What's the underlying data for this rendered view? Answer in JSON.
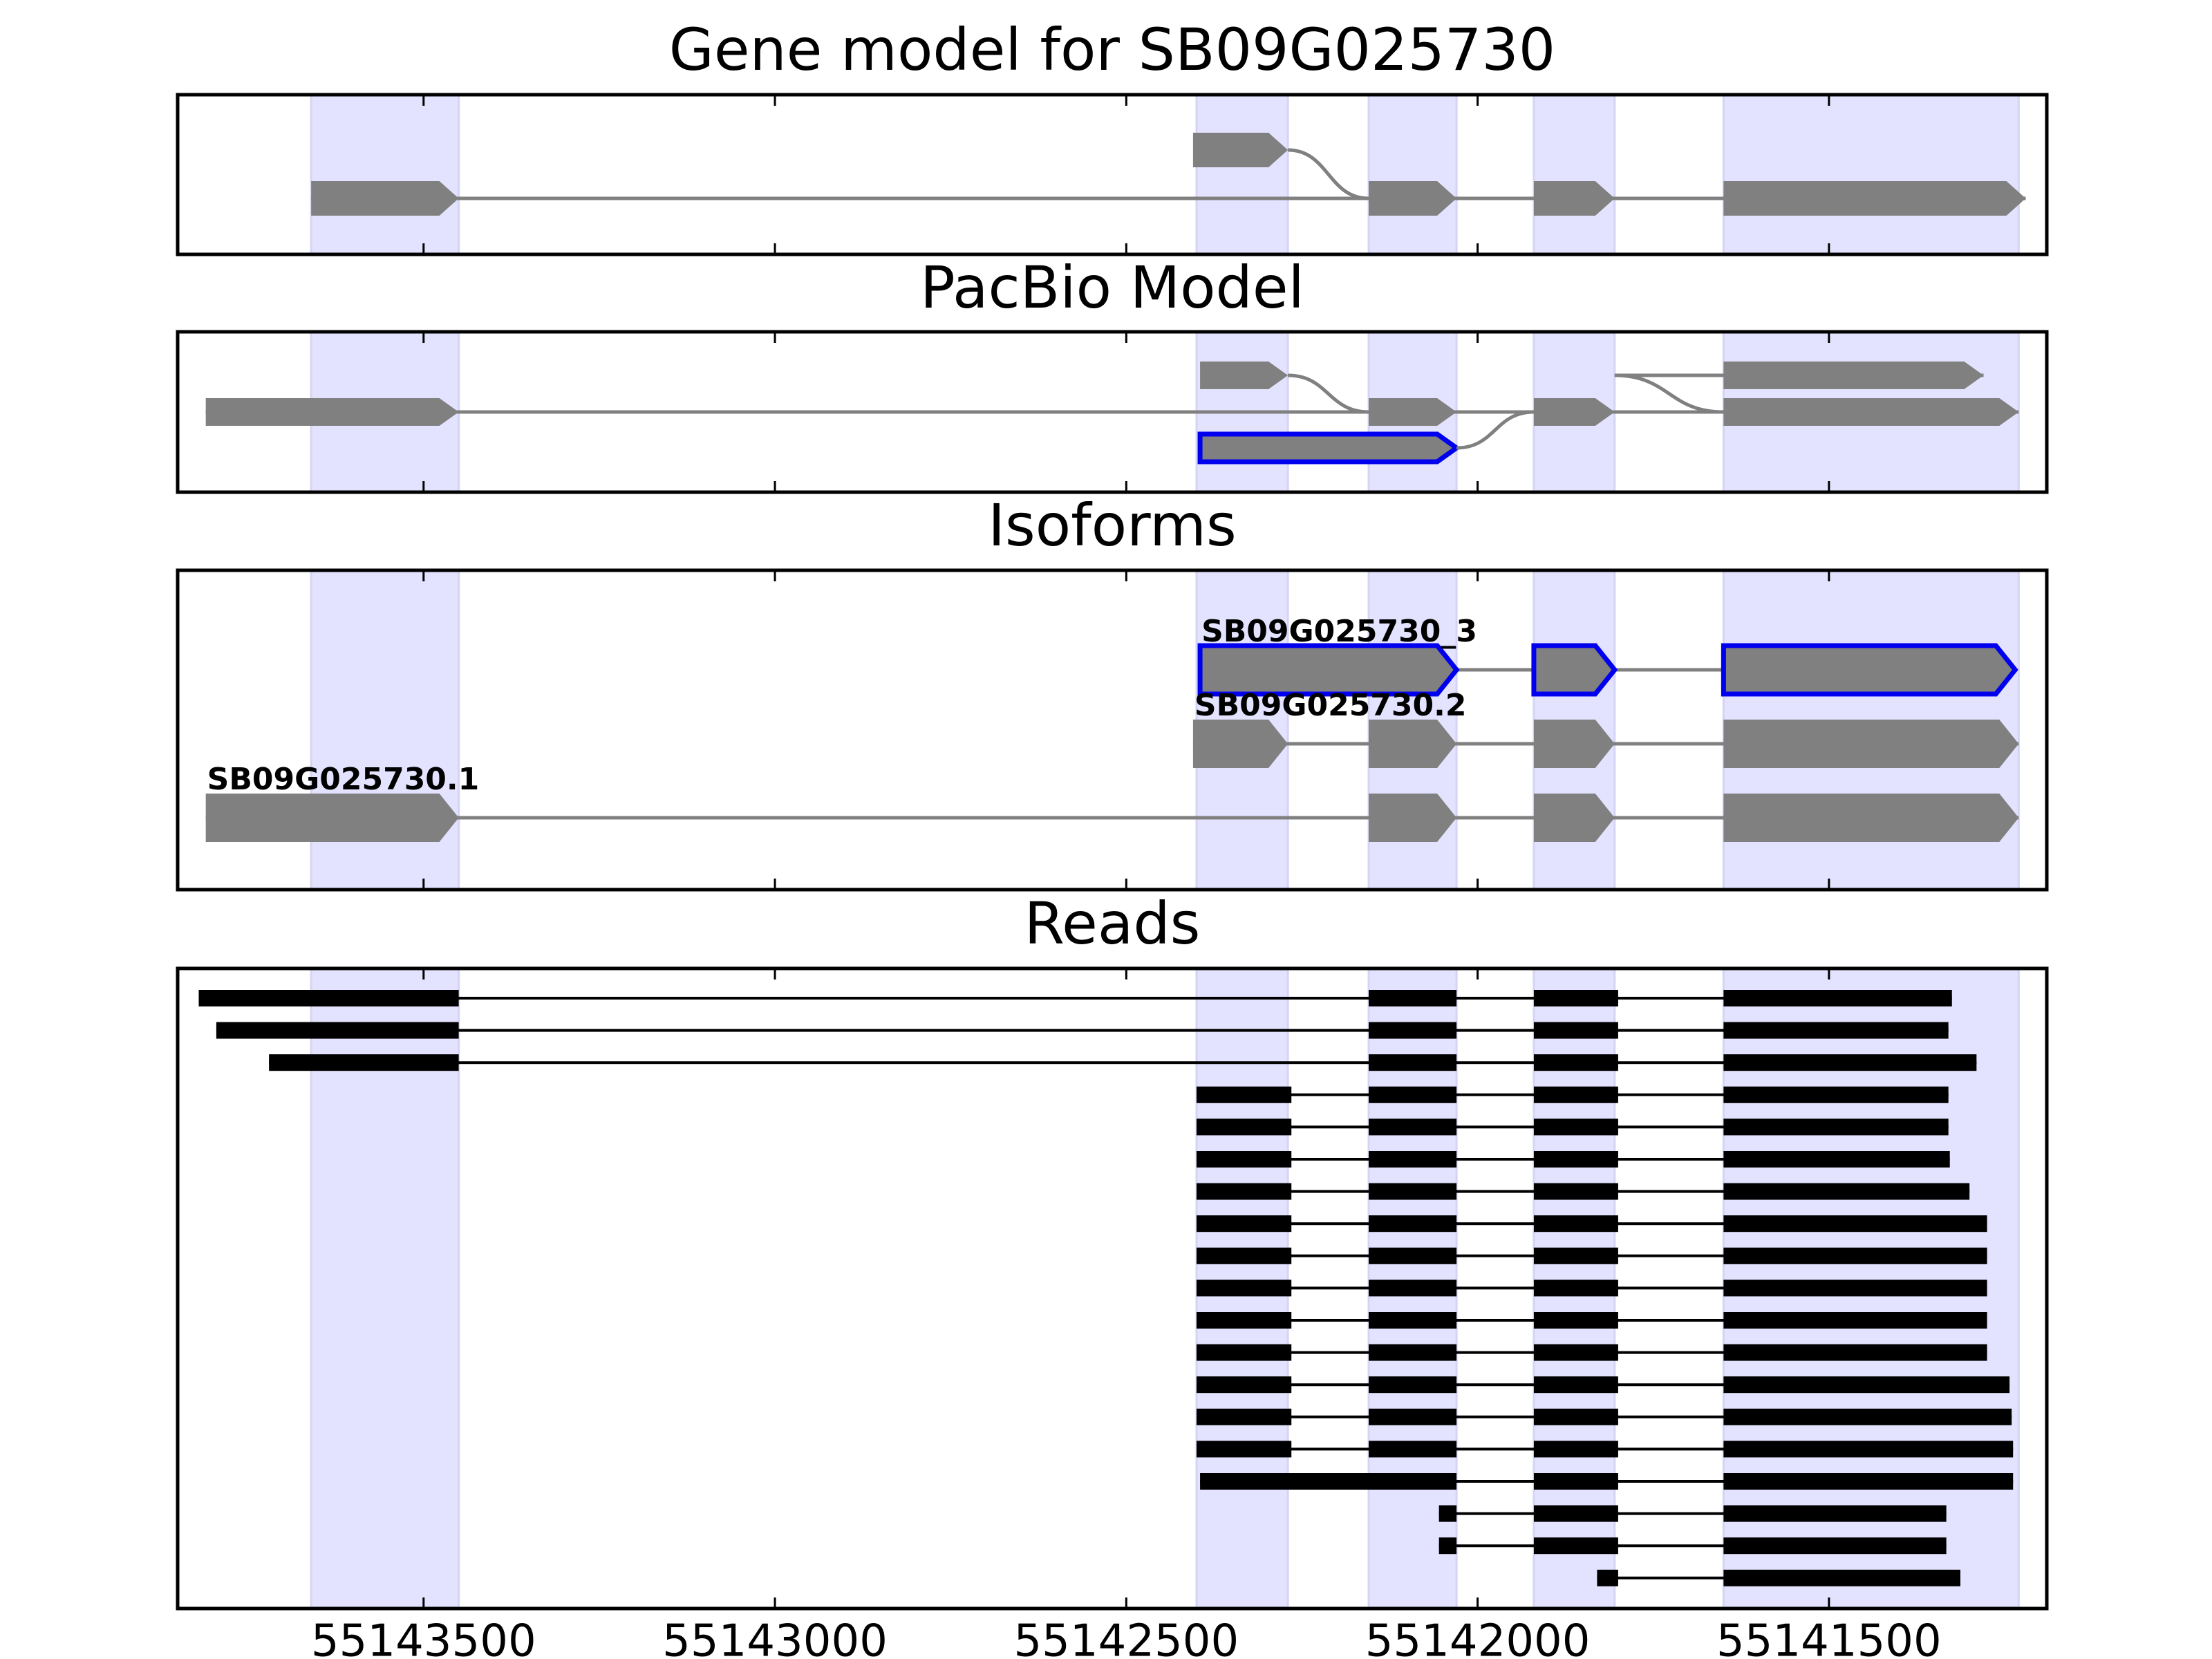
{
  "chart_data": {
    "type": "gene-structure",
    "direction": "minus-strand (genomic coordinate decreases to the right)",
    "x_axis": {
      "range": [
        55143850,
        55141190
      ],
      "ticks": [
        55143500,
        55143000,
        55142500,
        55142000,
        55141500
      ],
      "tick_labels": [
        "55143500",
        "55143000",
        "55142500",
        "55142000",
        "55141500"
      ]
    },
    "exon_highlight_regions": [
      [
        55143660,
        55143450
      ],
      [
        55142400,
        55142270
      ],
      [
        55142155,
        55142030
      ],
      [
        55141920,
        55141805
      ],
      [
        55141650,
        55141230
      ]
    ],
    "panels": [
      {
        "title": "Gene model for SB09G025730",
        "transcripts": [
          {
            "label": "",
            "row": 2,
            "exons": [
              [
                55142405,
                55142270
              ]
            ],
            "link": [
              55142270,
              55142155,
              1
            ]
          },
          {
            "label": "",
            "row": 1,
            "exons": [
              [
                55143660,
                55143450
              ],
              [
                55142155,
                55142030
              ],
              [
                55141920,
                55141805
              ],
              [
                55141650,
                55141220
              ]
            ]
          }
        ]
      },
      {
        "title": "PacBio Model",
        "transcripts": [
          {
            "label": "",
            "row": 3,
            "exons": [
              [
                55142395,
                55142270
              ]
            ],
            "link": [
              55142270,
              55142155,
              2
            ]
          },
          {
            "label": "",
            "row": 2,
            "exons": [
              [
                55143810,
                55143450
              ],
              [
                55142155,
                55142030
              ],
              [
                55141920,
                55141805
              ],
              [
                55141650,
                55141230
              ]
            ]
          },
          {
            "label": "",
            "row": 1,
            "highlight": true,
            "exons": [
              [
                55142395,
                55142030
              ]
            ],
            "link": [
              55142030,
              55141920,
              2
            ]
          },
          {
            "label": "",
            "row": 3,
            "exons": [
              [
                55141650,
                55141280
              ]
            ],
            "link": [
              55141805,
              55141650,
              2
            ],
            "span_start": 55141805
          }
        ]
      },
      {
        "title": "Isoforms",
        "transcripts": [
          {
            "label": "SB09G025730_3",
            "row": 3,
            "highlight": true,
            "exons": [
              [
                55142395,
                55142030
              ],
              [
                55141920,
                55141805
              ],
              [
                55141650,
                55141235
              ]
            ]
          },
          {
            "label": "SB09G025730.2",
            "row": 2,
            "exons": [
              [
                55142405,
                55142270
              ],
              [
                55142155,
                55142030
              ],
              [
                55141920,
                55141805
              ],
              [
                55141650,
                55141230
              ]
            ]
          },
          {
            "label": "SB09G025730.1",
            "row": 1,
            "exons": [
              [
                55143810,
                55143450
              ],
              [
                55142155,
                55142030
              ],
              [
                55141920,
                55141805
              ],
              [
                55141650,
                55141230
              ]
            ]
          }
        ]
      },
      {
        "title": "Reads",
        "reads": [
          [
            [
              55143820,
              55143450
            ],
            [
              55142155,
              55142030
            ],
            [
              55141920,
              55141800
            ],
            [
              55141650,
              55141325
            ]
          ],
          [
            [
              55143795,
              55143450
            ],
            [
              55142155,
              55142030
            ],
            [
              55141920,
              55141800
            ],
            [
              55141650,
              55141330
            ]
          ],
          [
            [
              55143720,
              55143450
            ],
            [
              55142155,
              55142030
            ],
            [
              55141920,
              55141800
            ],
            [
              55141650,
              55141290
            ]
          ],
          [
            [
              55142400,
              55142265
            ],
            [
              55142155,
              55142030
            ],
            [
              55141920,
              55141800
            ],
            [
              55141650,
              55141330
            ]
          ],
          [
            [
              55142400,
              55142265
            ],
            [
              55142155,
              55142030
            ],
            [
              55141920,
              55141800
            ],
            [
              55141650,
              55141330
            ]
          ],
          [
            [
              55142400,
              55142265
            ],
            [
              55142155,
              55142030
            ],
            [
              55141920,
              55141800
            ],
            [
              55141650,
              55141328
            ]
          ],
          [
            [
              55142400,
              55142265
            ],
            [
              55142155,
              55142030
            ],
            [
              55141920,
              55141800
            ],
            [
              55141650,
              55141300
            ]
          ],
          [
            [
              55142400,
              55142265
            ],
            [
              55142155,
              55142030
            ],
            [
              55141920,
              55141800
            ],
            [
              55141650,
              55141275
            ]
          ],
          [
            [
              55142400,
              55142265
            ],
            [
              55142155,
              55142030
            ],
            [
              55141920,
              55141800
            ],
            [
              55141650,
              55141275
            ]
          ],
          [
            [
              55142400,
              55142265
            ],
            [
              55142155,
              55142030
            ],
            [
              55141920,
              55141800
            ],
            [
              55141650,
              55141275
            ]
          ],
          [
            [
              55142400,
              55142265
            ],
            [
              55142155,
              55142030
            ],
            [
              55141920,
              55141800
            ],
            [
              55141650,
              55141275
            ]
          ],
          [
            [
              55142400,
              55142265
            ],
            [
              55142155,
              55142030
            ],
            [
              55141920,
              55141800
            ],
            [
              55141650,
              55141275
            ]
          ],
          [
            [
              55142400,
              55142265
            ],
            [
              55142155,
              55142030
            ],
            [
              55141920,
              55141800
            ],
            [
              55141650,
              55141243
            ]
          ],
          [
            [
              55142400,
              55142265
            ],
            [
              55142155,
              55142030
            ],
            [
              55141920,
              55141800
            ],
            [
              55141650,
              55141240
            ]
          ],
          [
            [
              55142400,
              55142265
            ],
            [
              55142155,
              55142030
            ],
            [
              55141920,
              55141800
            ],
            [
              55141650,
              55141238
            ]
          ],
          [
            [
              55142395,
              55142030
            ],
            [
              55141920,
              55141800
            ],
            [
              55141650,
              55141238
            ]
          ],
          [
            [
              55142055,
              55142030
            ],
            [
              55141920,
              55141800
            ],
            [
              55141650,
              55141333
            ]
          ],
          [
            [
              55142055,
              55142030
            ],
            [
              55141920,
              55141800
            ],
            [
              55141650,
              55141333
            ]
          ],
          [
            [
              55141830,
              55141800
            ],
            [
              55141650,
              55141313
            ]
          ]
        ]
      }
    ],
    "colors": {
      "exon": "#808080",
      "intron": "#808080",
      "highlight_outline": "#0000ee",
      "region_fill": "#e3e3ff",
      "read": "#000000"
    }
  }
}
